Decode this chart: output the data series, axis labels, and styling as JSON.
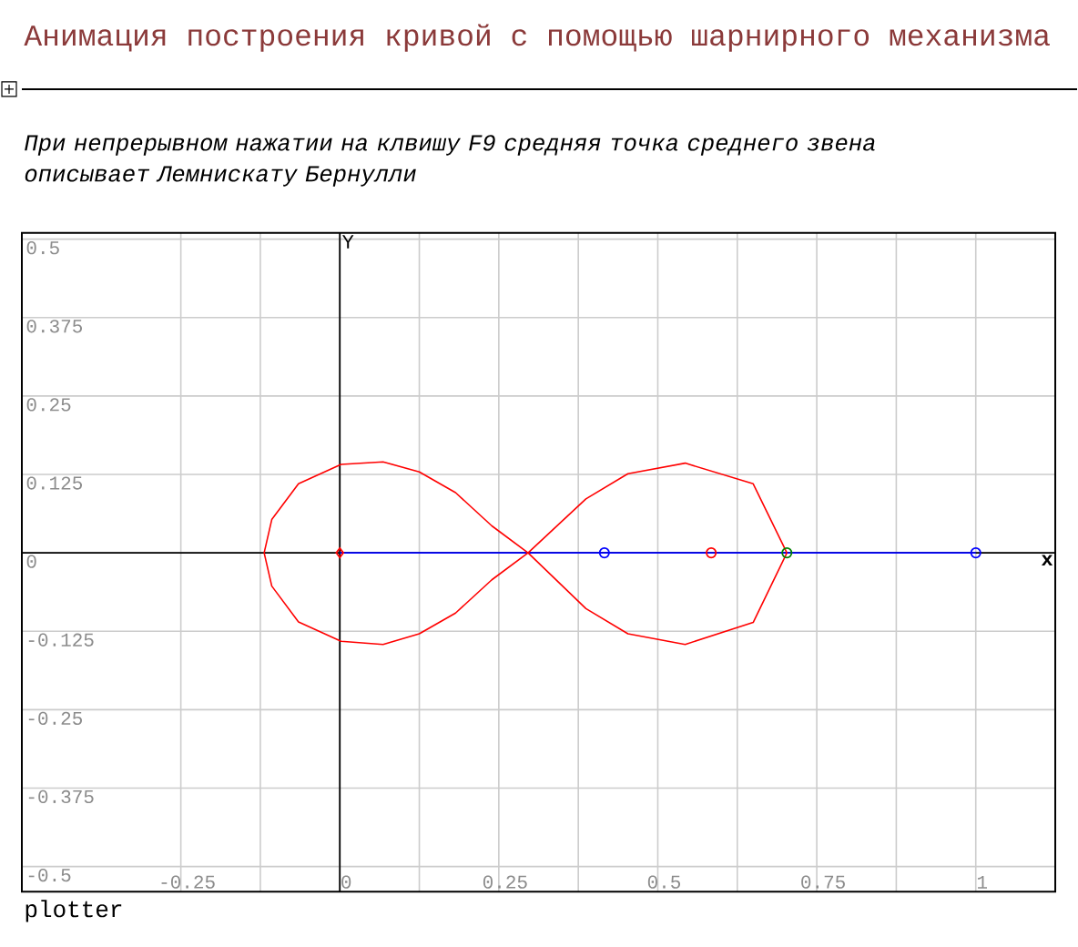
{
  "chart_data": {
    "type": "line",
    "title": "Анимация построения кривой с помощью шарнирного механизма",
    "subtitle": "При непрерывном нажатии на клвишу F9 средняя точка среднего звена описывает Лемнискату Бернулли",
    "xlabel": "x",
    "ylabel": "Y",
    "annotations": [
      "plotter"
    ],
    "xlim": [
      -0.5,
      1.125
    ],
    "ylim": [
      -0.54,
      0.51
    ],
    "xticks": [
      -0.25,
      0,
      0.25,
      0.5,
      0.75,
      1
    ],
    "yticks": [
      -0.5,
      -0.375,
      -0.25,
      -0.125,
      0,
      0.125,
      0.25,
      0.375,
      0.5
    ],
    "grid": true,
    "series": [
      {
        "color": "#0000ff",
        "marker": "none",
        "x": [
          0,
          1
        ],
        "values": [
          0,
          0
        ]
      },
      {
        "color": "#ff0000",
        "marker": "none",
        "x": [
          -0.119,
          -0.107,
          -0.065,
          0.002,
          0.068,
          0.125,
          0.182,
          0.239,
          0.296,
          0.387,
          0.453,
          0.543,
          0.65,
          0.703
        ],
        "values": [
          0,
          0.053,
          0.11,
          0.141,
          0.145,
          0.129,
          0.096,
          0.043,
          0,
          -0.089,
          -0.129,
          -0.146,
          -0.111,
          0
        ]
      },
      {
        "color": "#ff0000",
        "marker": "none",
        "x": [
          -0.119,
          -0.107,
          -0.065,
          0.002,
          0.068,
          0.125,
          0.182,
          0.239,
          0.296,
          0.387,
          0.453,
          0.543,
          0.65,
          0.703
        ],
        "values": [
          0,
          -0.053,
          -0.11,
          -0.141,
          -0.146,
          -0.129,
          -0.096,
          -0.043,
          0,
          0.086,
          0.126,
          0.143,
          0.11,
          0
        ]
      },
      {
        "type": "scatter",
        "color": "#0000ff",
        "marker": "circle",
        "x": [
          0.416,
          1
        ],
        "values": [
          0,
          0
        ]
      },
      {
        "type": "scatter",
        "color": "#ff0000",
        "marker": "diamond",
        "x": [
          0
        ],
        "values": [
          0
        ]
      },
      {
        "type": "scatter",
        "color": "#ff0000",
        "marker": "circle",
        "x": [
          0.584
        ],
        "values": [
          0
        ]
      },
      {
        "type": "scatter",
        "color": "#008000",
        "marker": "circle",
        "x": [
          0.703
        ],
        "values": [
          0
        ]
      }
    ]
  }
}
